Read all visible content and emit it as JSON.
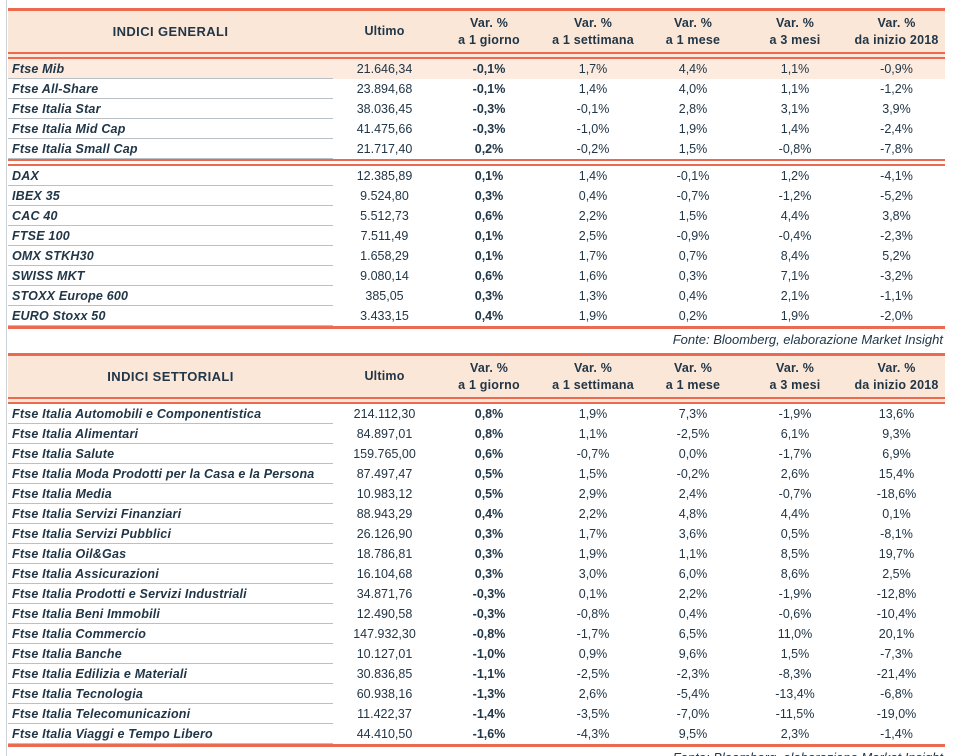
{
  "colors": {
    "rule_red": "#ec6a50",
    "header_bg": "#fbe7d8",
    "highlight_bg": "#fcebde",
    "text_navy": "#213647",
    "row_separator": "#b9c1c7"
  },
  "source_note": "Fonte: Bloomberg, elaborazione Market Insight",
  "col_headers": {
    "var_label": "Var. %",
    "periods": [
      "a 1 giorno",
      "a 1 settimana",
      "a 1 mese",
      "a 3 mesi",
      "da inizio 2018"
    ]
  },
  "tables": [
    {
      "title": "INDICI GENERALI",
      "ultimo_label": "Ultimo",
      "sections": [
        {
          "rows": [
            {
              "name": "Ftse Mib",
              "ultimo": "21.646,34",
              "var_1g": "-0,1%",
              "var_1s": "1,7%",
              "var_1m": "4,4%",
              "var_3m": "1,1%",
              "var_ytd": "-0,9%",
              "highlight": true
            },
            {
              "name": "Ftse All-Share",
              "ultimo": "23.894,68",
              "var_1g": "-0,1%",
              "var_1s": "1,4%",
              "var_1m": "4,0%",
              "var_3m": "1,1%",
              "var_ytd": "-1,2%"
            },
            {
              "name": "Ftse Italia Star",
              "ultimo": "38.036,45",
              "var_1g": "-0,3%",
              "var_1s": "-0,1%",
              "var_1m": "2,8%",
              "var_3m": "3,1%",
              "var_ytd": "3,9%"
            },
            {
              "name": "Ftse Italia Mid Cap",
              "ultimo": "41.475,66",
              "var_1g": "-0,3%",
              "var_1s": "-1,0%",
              "var_1m": "1,9%",
              "var_3m": "1,4%",
              "var_ytd": "-2,4%"
            },
            {
              "name": "Ftse Italia Small Cap",
              "ultimo": "21.717,40",
              "var_1g": "0,2%",
              "var_1s": "-0,2%",
              "var_1m": "1,5%",
              "var_3m": "-0,8%",
              "var_ytd": "-7,8%"
            }
          ]
        },
        {
          "rows": [
            {
              "name": "DAX",
              "ultimo": "12.385,89",
              "var_1g": "0,1%",
              "var_1s": "1,4%",
              "var_1m": "-0,1%",
              "var_3m": "1,2%",
              "var_ytd": "-4,1%"
            },
            {
              "name": "IBEX 35",
              "ultimo": "9.524,80",
              "var_1g": "0,3%",
              "var_1s": "0,4%",
              "var_1m": "-0,7%",
              "var_3m": "-1,2%",
              "var_ytd": "-5,2%"
            },
            {
              "name": "CAC 40",
              "ultimo": "5.512,73",
              "var_1g": "0,6%",
              "var_1s": "2,2%",
              "var_1m": "1,5%",
              "var_3m": "4,4%",
              "var_ytd": "3,8%"
            },
            {
              "name": "FTSE 100",
              "ultimo": "7.511,49",
              "var_1g": "0,1%",
              "var_1s": "2,5%",
              "var_1m": "-0,9%",
              "var_3m": "-0,4%",
              "var_ytd": "-2,3%"
            },
            {
              "name": "OMX STKH30",
              "ultimo": "1.658,29",
              "var_1g": "0,1%",
              "var_1s": "1,7%",
              "var_1m": "0,7%",
              "var_3m": "8,4%",
              "var_ytd": "5,2%"
            },
            {
              "name": "SWISS MKT",
              "ultimo": "9.080,14",
              "var_1g": "0,6%",
              "var_1s": "1,6%",
              "var_1m": "0,3%",
              "var_3m": "7,1%",
              "var_ytd": "-3,2%"
            },
            {
              "name": "STOXX Europe 600",
              "ultimo": "385,05",
              "var_1g": "0,3%",
              "var_1s": "1,3%",
              "var_1m": "0,4%",
              "var_3m": "2,1%",
              "var_ytd": "-1,1%"
            },
            {
              "name": "EURO Stoxx 50",
              "ultimo": "3.433,15",
              "var_1g": "0,4%",
              "var_1s": "1,9%",
              "var_1m": "0,2%",
              "var_3m": "1,9%",
              "var_ytd": "-2,0%"
            }
          ]
        }
      ]
    },
    {
      "title": "INDICI SETTORIALI",
      "ultimo_label": "Ultimo",
      "sections": [
        {
          "rows": [
            {
              "name": "Ftse Italia Automobili e Componentistica",
              "ultimo": "214.112,30",
              "var_1g": "0,8%",
              "var_1s": "1,9%",
              "var_1m": "7,3%",
              "var_3m": "-1,9%",
              "var_ytd": "13,6%"
            },
            {
              "name": "Ftse Italia Alimentari",
              "ultimo": "84.897,01",
              "var_1g": "0,8%",
              "var_1s": "1,1%",
              "var_1m": "-2,5%",
              "var_3m": "6,1%",
              "var_ytd": "9,3%"
            },
            {
              "name": "Ftse Italia Salute",
              "ultimo": "159.765,00",
              "var_1g": "0,6%",
              "var_1s": "-0,7%",
              "var_1m": "0,0%",
              "var_3m": "-1,7%",
              "var_ytd": "6,9%"
            },
            {
              "name": "Ftse Italia Moda Prodotti per la Casa e la Persona",
              "ultimo": "87.497,47",
              "var_1g": "0,5%",
              "var_1s": "1,5%",
              "var_1m": "-0,2%",
              "var_3m": "2,6%",
              "var_ytd": "15,4%"
            },
            {
              "name": "Ftse Italia Media",
              "ultimo": "10.983,12",
              "var_1g": "0,5%",
              "var_1s": "2,9%",
              "var_1m": "2,4%",
              "var_3m": "-0,7%",
              "var_ytd": "-18,6%"
            },
            {
              "name": "Ftse Italia Servizi Finanziari",
              "ultimo": "88.943,29",
              "var_1g": "0,4%",
              "var_1s": "2,2%",
              "var_1m": "4,8%",
              "var_3m": "4,4%",
              "var_ytd": "0,1%"
            },
            {
              "name": "Ftse Italia Servizi Pubblici",
              "ultimo": "26.126,90",
              "var_1g": "0,3%",
              "var_1s": "1,7%",
              "var_1m": "3,6%",
              "var_3m": "0,5%",
              "var_ytd": "-8,1%"
            },
            {
              "name": "Ftse Italia Oil&Gas",
              "ultimo": "18.786,81",
              "var_1g": "0,3%",
              "var_1s": "1,9%",
              "var_1m": "1,1%",
              "var_3m": "8,5%",
              "var_ytd": "19,7%"
            },
            {
              "name": "Ftse Italia Assicurazioni",
              "ultimo": "16.104,68",
              "var_1g": "0,3%",
              "var_1s": "3,0%",
              "var_1m": "6,0%",
              "var_3m": "8,6%",
              "var_ytd": "2,5%"
            },
            {
              "name": "Ftse Italia Prodotti e Servizi Industriali",
              "ultimo": "34.871,76",
              "var_1g": "-0,3%",
              "var_1s": "0,1%",
              "var_1m": "2,2%",
              "var_3m": "-1,9%",
              "var_ytd": "-12,8%"
            },
            {
              "name": "Ftse Italia Beni Immobili",
              "ultimo": "12.490,58",
              "var_1g": "-0,3%",
              "var_1s": "-0,8%",
              "var_1m": "0,4%",
              "var_3m": "-0,6%",
              "var_ytd": "-10,4%"
            },
            {
              "name": "Ftse Italia Commercio",
              "ultimo": "147.932,30",
              "var_1g": "-0,8%",
              "var_1s": "-1,7%",
              "var_1m": "6,5%",
              "var_3m": "11,0%",
              "var_ytd": "20,1%"
            },
            {
              "name": "Ftse Italia Banche",
              "ultimo": "10.127,01",
              "var_1g": "-1,0%",
              "var_1s": "0,9%",
              "var_1m": "9,6%",
              "var_3m": "1,5%",
              "var_ytd": "-7,3%"
            },
            {
              "name": "Ftse Italia Edilizia e Materiali",
              "ultimo": "30.836,85",
              "var_1g": "-1,1%",
              "var_1s": "-2,5%",
              "var_1m": "-2,3%",
              "var_3m": "-8,3%",
              "var_ytd": "-21,4%"
            },
            {
              "name": "Ftse Italia Tecnologia",
              "ultimo": "60.938,16",
              "var_1g": "-1,3%",
              "var_1s": "2,6%",
              "var_1m": "-5,4%",
              "var_3m": "-13,4%",
              "var_ytd": "-6,8%"
            },
            {
              "name": "Ftse Italia Telecomunicazioni",
              "ultimo": "11.422,37",
              "var_1g": "-1,4%",
              "var_1s": "-3,5%",
              "var_1m": "-7,0%",
              "var_3m": "-11,5%",
              "var_ytd": "-19,0%"
            },
            {
              "name": "Ftse Italia Viaggi e Tempo Libero",
              "ultimo": "44.410,50",
              "var_1g": "-1,6%",
              "var_1s": "-4,3%",
              "var_1m": "9,5%",
              "var_3m": "2,3%",
              "var_ytd": "-1,4%"
            }
          ]
        }
      ]
    }
  ]
}
